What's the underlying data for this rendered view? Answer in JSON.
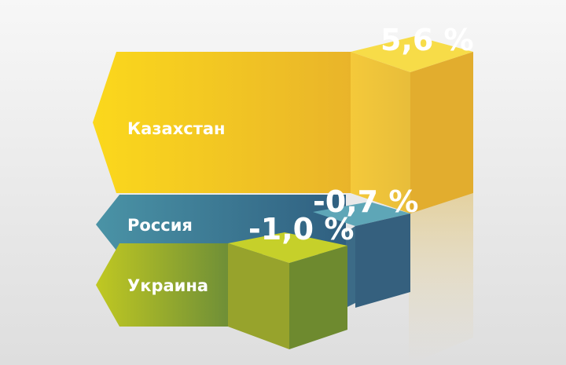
{
  "chart_data": {
    "type": "bar",
    "style": "3d-horizontal",
    "categories": [
      "Казахстан",
      "Россия",
      "Украина"
    ],
    "values": [
      5.6,
      -0.7,
      -1.0
    ],
    "value_labels": [
      "5,6 %",
      "-0,7 %",
      "-1,0 %"
    ],
    "unit": "%",
    "title": "",
    "xlabel": "",
    "ylabel": "",
    "grid": false,
    "legend": "none"
  },
  "colors": {
    "kazakhstan": "#f2c416",
    "russia": "#3b7f98",
    "ukraine": "#a4ad26"
  }
}
